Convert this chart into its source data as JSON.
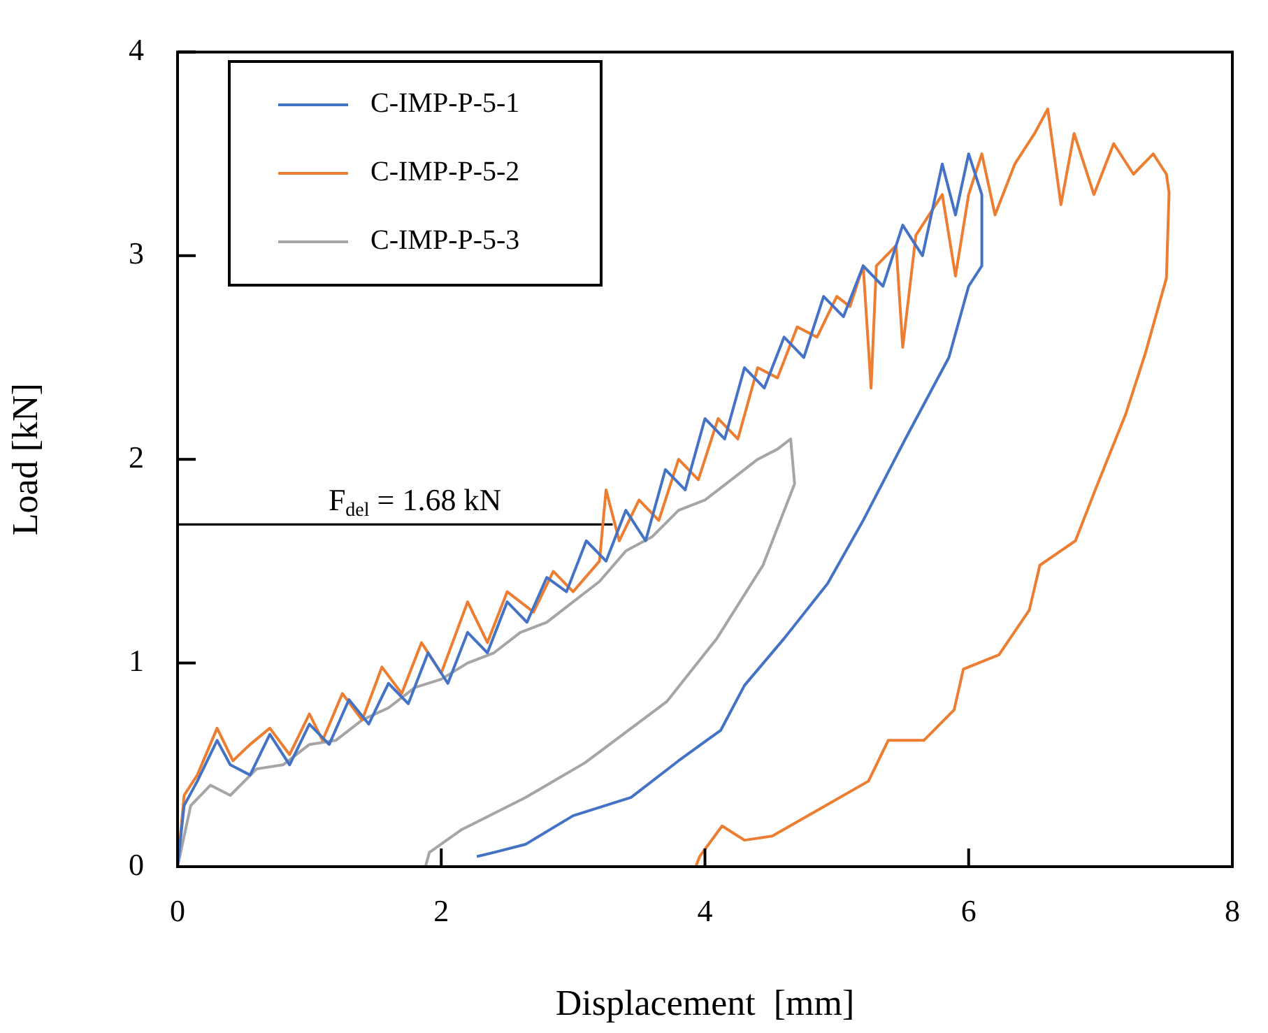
{
  "chart_data": {
    "type": "line",
    "xlabel": "Displacement  [mm]",
    "ylabel": "Load [kN]",
    "xlim": [
      0,
      8
    ],
    "xticks": [
      0,
      2,
      4,
      6,
      8
    ],
    "ylim": [
      0,
      4
    ],
    "yticks": [
      0,
      1,
      2,
      3,
      4
    ],
    "grid": false,
    "legend": "top left",
    "marker": "none",
    "line_style": "solid",
    "annotations": [
      {
        "text": "F$_{del}$ = 1.68 kN",
        "x": 1.8,
        "y": 1.68
      }
    ],
    "series": [
      {
        "name": "C-IMP-P-5-1",
        "color": "#4472c4",
        "x": [
          0,
          0.05,
          0.15,
          0.3,
          0.4,
          0.55,
          0.7,
          0.85,
          1.0,
          1.15,
          1.3,
          1.45,
          1.6,
          1.75,
          1.9,
          2.05,
          2.2,
          2.35,
          2.5,
          2.65,
          2.8,
          2.95,
          3.1,
          3.25,
          3.4,
          3.55,
          3.7,
          3.85,
          4.0,
          4.15,
          4.3,
          4.45,
          4.6,
          4.75,
          4.9,
          5.05,
          5.2,
          5.35,
          5.5,
          5.65,
          5.8,
          5.9,
          6.0,
          6.1,
          6.1,
          6.0,
          5.85,
          5.52,
          5.2,
          4.93,
          4.6,
          4.3,
          4.12,
          3.8,
          3.44,
          3.0,
          2.64,
          2.4,
          2.27
        ],
        "values": [
          0,
          0.3,
          0.42,
          0.62,
          0.5,
          0.45,
          0.65,
          0.5,
          0.7,
          0.6,
          0.82,
          0.7,
          0.9,
          0.8,
          1.05,
          0.9,
          1.15,
          1.05,
          1.3,
          1.2,
          1.42,
          1.35,
          1.6,
          1.5,
          1.75,
          1.6,
          1.95,
          1.85,
          2.2,
          2.1,
          2.45,
          2.35,
          2.6,
          2.5,
          2.8,
          2.7,
          2.95,
          2.85,
          3.15,
          3.0,
          3.45,
          3.2,
          3.5,
          3.3,
          2.95,
          2.85,
          2.5,
          2.1,
          1.7,
          1.39,
          1.12,
          0.89,
          0.67,
          0.52,
          0.34,
          0.25,
          0.11,
          0.07,
          0.05
        ]
      },
      {
        "name": "C-IMP-P-5-2",
        "color": "#ed7d31",
        "x": [
          0,
          0.05,
          0.15,
          0.3,
          0.42,
          0.55,
          0.7,
          0.85,
          1.0,
          1.1,
          1.25,
          1.4,
          1.55,
          1.7,
          1.85,
          2.0,
          2.2,
          2.35,
          2.5,
          2.7,
          2.85,
          3.0,
          3.2,
          3.25,
          3.35,
          3.5,
          3.65,
          3.8,
          3.95,
          4.1,
          4.25,
          4.4,
          4.55,
          4.7,
          4.85,
          5.0,
          5.1,
          5.2,
          5.26,
          5.3,
          5.45,
          5.5,
          5.6,
          5.8,
          5.9,
          6.0,
          6.1,
          6.2,
          6.35,
          6.5,
          6.6,
          6.7,
          6.8,
          6.95,
          7.1,
          7.25,
          7.4,
          7.5,
          7.52,
          7.5,
          7.34,
          7.19,
          6.96,
          6.81,
          6.54,
          6.46,
          6.23,
          5.96,
          5.89,
          5.66,
          5.39,
          5.24,
          4.97,
          4.51,
          4.3,
          4.13,
          3.96,
          3.93
        ],
        "values": [
          0,
          0.35,
          0.45,
          0.68,
          0.52,
          0.6,
          0.68,
          0.55,
          0.75,
          0.62,
          0.85,
          0.72,
          0.98,
          0.85,
          1.1,
          0.95,
          1.3,
          1.1,
          1.35,
          1.25,
          1.45,
          1.35,
          1.5,
          1.85,
          1.6,
          1.8,
          1.7,
          2.0,
          1.9,
          2.2,
          2.1,
          2.45,
          2.4,
          2.65,
          2.6,
          2.8,
          2.75,
          2.95,
          2.35,
          2.95,
          3.05,
          2.55,
          3.1,
          3.3,
          2.9,
          3.3,
          3.5,
          3.2,
          3.45,
          3.6,
          3.72,
          3.25,
          3.6,
          3.3,
          3.55,
          3.4,
          3.5,
          3.4,
          3.31,
          2.89,
          2.52,
          2.22,
          1.85,
          1.6,
          1.48,
          1.26,
          1.04,
          0.97,
          0.77,
          0.62,
          0.62,
          0.42,
          0.32,
          0.15,
          0.13,
          0.2,
          0.05,
          0
        ]
      },
      {
        "name": "C-IMP-P-5-3",
        "color": "#a5a5a5",
        "x": [
          0,
          0.1,
          0.25,
          0.4,
          0.6,
          0.8,
          1.0,
          1.2,
          1.4,
          1.6,
          1.8,
          2.0,
          2.2,
          2.4,
          2.6,
          2.8,
          3.0,
          3.2,
          3.4,
          3.6,
          3.8,
          4.0,
          4.2,
          4.4,
          4.55,
          4.65,
          4.68,
          4.44,
          4.09,
          3.71,
          3.09,
          2.64,
          2.15,
          1.91,
          1.88
        ],
        "values": [
          0,
          0.3,
          0.4,
          0.35,
          0.48,
          0.5,
          0.6,
          0.62,
          0.72,
          0.78,
          0.88,
          0.92,
          1.0,
          1.05,
          1.15,
          1.2,
          1.3,
          1.4,
          1.55,
          1.62,
          1.75,
          1.8,
          1.9,
          2.0,
          2.05,
          2.1,
          1.88,
          1.48,
          1.12,
          0.81,
          0.51,
          0.34,
          0.18,
          0.07,
          0
        ]
      },
      {
        "color": "#000000",
        "x": [
          0,
          3.3
        ],
        "values": [
          1.68,
          1.68
        ]
      }
    ]
  }
}
